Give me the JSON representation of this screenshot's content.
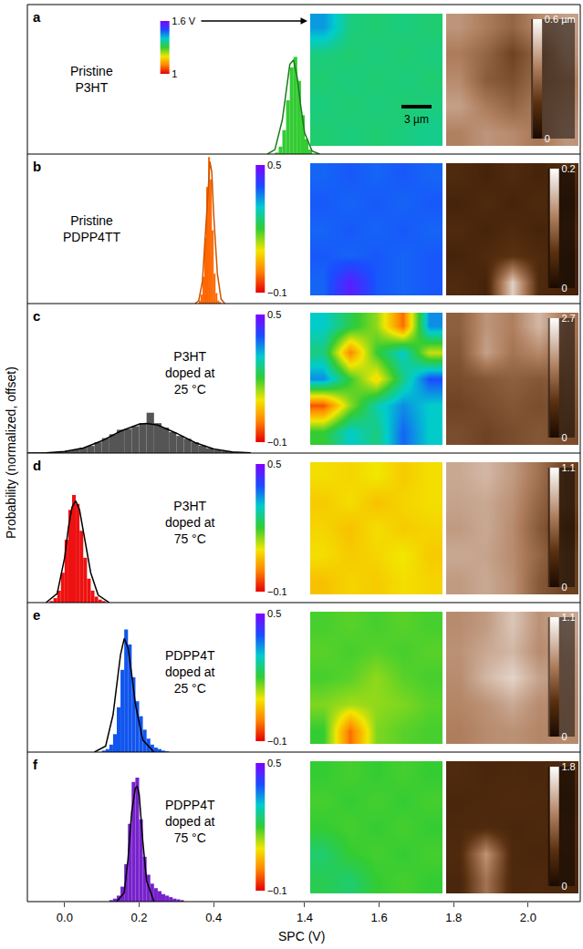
{
  "chart_data": {
    "type": "histogram",
    "y_label": "Probability (normalized, offset)",
    "x_label": "SPC (V)",
    "xlim": [
      -0.1,
      0.5
    ],
    "xticks": [
      {
        "value": 0,
        "label": "0.0"
      },
      {
        "value": 0.2,
        "label": "0.2"
      },
      {
        "value": 0.4,
        "label": "0.4"
      }
    ],
    "x2lim": [
      1.28,
      2.14
    ],
    "x2ticks": [
      {
        "value": 1.4,
        "label": "1.4"
      },
      {
        "value": 1.6,
        "label": "1.6"
      },
      {
        "value": 1.8,
        "label": "1.8"
      },
      {
        "value": 2,
        "label": "2.0"
      }
    ],
    "ylim": [
      0,
      1
    ],
    "tick_labels": "x",
    "scale_bar": "3 µm",
    "panels": [
      {
        "letter": "a",
        "label": [
          "Pristine",
          "P3HT"
        ],
        "axis": "x2",
        "color": "#33cc33",
        "bins": [
          1.32,
          1.33,
          1.34,
          1.35,
          1.36,
          1.37,
          1.38,
          1.39,
          1.4,
          1.41,
          1.42
        ],
        "counts": [
          0.01,
          0.05,
          0.16,
          0.36,
          0.58,
          0.65,
          0.49,
          0.26,
          0.1,
          0.03
        ],
        "fit": {
          "color": "#1a7a1a",
          "x": [
            1.3,
            1.32,
            1.34,
            1.35,
            1.36,
            1.37,
            1.38,
            1.39,
            1.4,
            1.42,
            1.44
          ],
          "values": [
            0,
            0.03,
            0.23,
            0.42,
            0.6,
            0.63,
            0.51,
            0.31,
            0.14,
            0.02,
            0
          ]
        },
        "spc_map": {
          "range": [
            1,
            1.6
          ],
          "ticks": [
            1,
            {
              "value": 1.6,
              "label": "1.6 V"
            }
          ],
          "cells": [
            [
              1.44,
              1.35,
              1.34,
              1.35,
              1.34
            ],
            [
              1.35,
              1.34,
              1.35,
              1.34,
              1.35
            ],
            [
              1.34,
              1.35,
              1.34,
              1.35,
              1.34
            ],
            [
              1.35,
              1.34,
              1.35,
              1.34,
              1.35
            ],
            [
              1.34,
              1.35,
              1.34,
              1.35,
              1.36
            ]
          ]
        },
        "afm_map": {
          "range": [
            0,
            0.6
          ],
          "ticks": [
            0,
            {
              "value": 0.6,
              "label": "0.6 µm"
            }
          ],
          "cells": [
            [
              0.4,
              0.35,
              0.3,
              0.38,
              0.42
            ],
            [
              0.35,
              0.3,
              0.22,
              0.3,
              0.4
            ],
            [
              0.38,
              0.28,
              0.25,
              0.32,
              0.36
            ],
            [
              0.42,
              0.35,
              0.3,
              0.35,
              0.38
            ],
            [
              0.36,
              0.4,
              0.38,
              0.34,
              0.4
            ]
          ]
        }
      },
      {
        "letter": "b",
        "label": [
          "Pristine",
          "PDPP4TT"
        ],
        "axis": "x",
        "color": "#ff6600",
        "bins": [
          0.36,
          0.365,
          0.37,
          0.375,
          0.38,
          0.385,
          0.39,
          0.395,
          0.4,
          0.405,
          0.41,
          0.415,
          0.42
        ],
        "counts": [
          0.02,
          0.06,
          0.18,
          0.44,
          0.78,
          0.98,
          0.83,
          0.49,
          0.2,
          0.07,
          0.02,
          0.01
        ],
        "fit": {
          "color": "#cc5500",
          "x": [
            0.35,
            0.36,
            0.37,
            0.38,
            0.385,
            0.39,
            0.395,
            0.4,
            0.41,
            0.42,
            0.43
          ],
          "values": [
            0,
            0.02,
            0.15,
            0.55,
            0.8,
            0.95,
            0.88,
            0.6,
            0.2,
            0.03,
            0
          ]
        },
        "spc_map": {
          "range": [
            -0.1,
            0.5
          ],
          "ticks": [
            {
              "value": -0.1,
              "label": "−0.1"
            },
            0.5
          ],
          "cells": [
            [
              0.38,
              0.39,
              0.38,
              0.39,
              0.38
            ],
            [
              0.39,
              0.38,
              0.39,
              0.38,
              0.39
            ],
            [
              0.38,
              0.39,
              0.38,
              0.39,
              0.38
            ],
            [
              0.39,
              0.38,
              0.39,
              0.38,
              0.39
            ],
            [
              0.38,
              0.46,
              0.39,
              0.38,
              0.39
            ]
          ]
        },
        "afm_map": {
          "range": [
            0,
            0.2
          ],
          "ticks": [
            0,
            0.2
          ],
          "cells": [
            [
              0.05,
              0.04,
              0.05,
              0.04,
              0.05
            ],
            [
              0.04,
              0.05,
              0.04,
              0.05,
              0.04
            ],
            [
              0.05,
              0.04,
              0.05,
              0.04,
              0.05
            ],
            [
              0.04,
              0.05,
              0.06,
              0.05,
              0.04
            ],
            [
              0.05,
              0.04,
              0.17,
              0.05,
              0.04
            ]
          ]
        }
      },
      {
        "letter": "c",
        "label": [
          "P3HT",
          "doped at",
          "25 °C"
        ],
        "axis": "x",
        "color": "#555555",
        "bins": [
          -0.1,
          -0.08,
          -0.06,
          -0.04,
          -0.02,
          0,
          0.02,
          0.04,
          0.06,
          0.08,
          0.1,
          0.12,
          0.14,
          0.16,
          0.18,
          0.2,
          0.22,
          0.24,
          0.26,
          0.28,
          0.3,
          0.32,
          0.34,
          0.36,
          0.38,
          0.4,
          0.42,
          0.44,
          0.46,
          0.48
        ],
        "counts": [
          0.001,
          0.002,
          0.004,
          0.006,
          0.009,
          0.015,
          0.024,
          0.036,
          0.048,
          0.072,
          0.1,
          0.126,
          0.156,
          0.162,
          0.18,
          0.2,
          0.27,
          0.2,
          0.17,
          0.14,
          0.115,
          0.096,
          0.072,
          0.05,
          0.033,
          0.021,
          0.012,
          0.007,
          0.004
        ],
        "fit": {
          "color": "#000000",
          "x": [
            -0.1,
            -0.05,
            0,
            0.05,
            0.1,
            0.15,
            0.2,
            0.22,
            0.25,
            0.3,
            0.35,
            0.4,
            0.45,
            0.5
          ],
          "values": [
            0.0004,
            0.002,
            0.01,
            0.034,
            0.082,
            0.146,
            0.193,
            0.198,
            0.187,
            0.133,
            0.07,
            0.027,
            0.008,
            0.002
          ]
        },
        "spc_map": {
          "range": [
            -0.1,
            0.5
          ],
          "ticks": [
            {
              "value": -0.1,
              "label": "−0.1"
            },
            0.5
          ],
          "cells": [
            [
              0.3,
              0.22,
              0.15,
              -0.02,
              0.35
            ],
            [
              0.25,
              0,
              0.2,
              0.3,
              0.12
            ],
            [
              0.35,
              0.2,
              0.08,
              0.25,
              0.4
            ],
            [
              -0.04,
              0.15,
              0.28,
              0.35,
              0.3
            ],
            [
              0.2,
              0.3,
              0.25,
              0.38,
              0.3
            ]
          ]
        },
        "afm_map": {
          "range": [
            0,
            2.7
          ],
          "ticks": [
            0,
            2.7
          ],
          "cells": [
            [
              1.3,
              1.8,
              1.6,
              2.1,
              1.5
            ],
            [
              1.2,
              1.9,
              1.5,
              1.7,
              1.4
            ],
            [
              1.1,
              1.2,
              1.3,
              1.2,
              1.3
            ],
            [
              1,
              1.1,
              1.2,
              1.1,
              1.2
            ],
            [
              1.1,
              1,
              1.1,
              1.2,
              1.1
            ]
          ]
        }
      },
      {
        "letter": "d",
        "label": [
          "P3HT",
          "doped at",
          "75 °C"
        ],
        "axis": "x",
        "color": "#ee1111",
        "bins": [
          -0.04,
          -0.03,
          -0.02,
          -0.01,
          0,
          0.01,
          0.02,
          0.03,
          0.04,
          0.05,
          0.06,
          0.07,
          0.08,
          0.09,
          0.1,
          0.11
        ],
        "counts": [
          0.01,
          0.03,
          0.08,
          0.2,
          0.42,
          0.62,
          0.72,
          0.66,
          0.48,
          0.3,
          0.16,
          0.08,
          0.04,
          0.02,
          0.01
        ],
        "fit": {
          "color": "#000000",
          "x": [
            -0.05,
            -0.02,
            0,
            0.01,
            0.02,
            0.03,
            0.04,
            0.05,
            0.07,
            0.09,
            0.12
          ],
          "values": [
            0,
            0.06,
            0.3,
            0.5,
            0.64,
            0.68,
            0.62,
            0.48,
            0.2,
            0.05,
            0
          ]
        },
        "spc_map": {
          "range": [
            -0.1,
            0.5
          ],
          "ticks": [
            {
              "value": -0.1,
              "label": "−0.1"
            },
            0.5
          ],
          "cells": [
            [
              0.09,
              0.08,
              0.1,
              0.07,
              0.09
            ],
            [
              0.07,
              0.09,
              0.06,
              0.08,
              0.09
            ],
            [
              0.08,
              0.06,
              0.09,
              0.07,
              0.08
            ],
            [
              0.09,
              0.07,
              0.08,
              0.1,
              0.07
            ],
            [
              0.06,
              0.08,
              0.07,
              0.09,
              0.08
            ]
          ]
        },
        "afm_map": {
          "range": [
            0,
            1.1
          ],
          "ticks": [
            0,
            1.1
          ],
          "cells": [
            [
              0.8,
              0.85,
              0.75,
              0.6,
              0.4
            ],
            [
              0.78,
              0.8,
              0.72,
              0.55,
              0.4
            ],
            [
              0.75,
              0.8,
              0.7,
              0.5,
              0.35
            ],
            [
              0.8,
              0.78,
              0.7,
              0.55,
              0.4
            ],
            [
              0.75,
              0.8,
              0.72,
              0.5,
              0.4
            ]
          ]
        }
      },
      {
        "letter": "e",
        "label": [
          "PDPP4T",
          "doped at",
          "25 °C"
        ],
        "axis": "x",
        "color": "#1155ee",
        "bins": [
          0.1,
          0.11,
          0.12,
          0.13,
          0.14,
          0.15,
          0.16,
          0.17,
          0.18,
          0.19,
          0.2,
          0.21,
          0.22,
          0.23,
          0.24,
          0.25,
          0.26,
          0.27,
          0.28
        ],
        "counts": [
          0.01,
          0.02,
          0.05,
          0.12,
          0.3,
          0.55,
          0.82,
          0.72,
          0.5,
          0.34,
          0.24,
          0.15,
          0.09,
          0.05,
          0.03,
          0.02,
          0.01,
          0.005
        ],
        "fit": {
          "color": "#000000",
          "x": [
            0.08,
            0.11,
            0.13,
            0.14,
            0.15,
            0.16,
            0.17,
            0.18,
            0.19,
            0.21,
            0.24
          ],
          "values": [
            0,
            0.04,
            0.25,
            0.45,
            0.65,
            0.76,
            0.7,
            0.52,
            0.32,
            0.08,
            0
          ]
        },
        "spc_map": {
          "range": [
            -0.1,
            0.5
          ],
          "ticks": [
            {
              "value": -0.1,
              "label": "−0.1"
            },
            0.5
          ],
          "cells": [
            [
              0.19,
              0.18,
              0.19,
              0.18,
              0.19
            ],
            [
              0.18,
              0.19,
              0.18,
              0.19,
              0.18
            ],
            [
              0.19,
              0.18,
              0.15,
              0.18,
              0.19
            ],
            [
              0.16,
              0.14,
              0.15,
              0.16,
              0.18
            ],
            [
              0.2,
              -0.02,
              0.16,
              0.18,
              0.19
            ]
          ]
        },
        "afm_map": {
          "range": [
            0,
            1.1
          ],
          "ticks": [
            0,
            1.1
          ],
          "cells": [
            [
              0.7,
              0.75,
              0.9,
              0.72,
              0.8
            ],
            [
              0.72,
              0.8,
              0.85,
              0.7,
              0.75
            ],
            [
              0.7,
              0.85,
              0.95,
              0.78,
              0.72
            ],
            [
              0.68,
              0.72,
              0.8,
              0.7,
              0.7
            ],
            [
              0.65,
              0.7,
              0.72,
              0.68,
              0.7
            ]
          ]
        }
      },
      {
        "letter": "f",
        "label": [
          "PDPP4T",
          "doped at",
          "75 °C"
        ],
        "axis": "x",
        "color": "#7722cc",
        "bins": [
          0.12,
          0.13,
          0.14,
          0.15,
          0.16,
          0.17,
          0.18,
          0.19,
          0.2,
          0.21,
          0.22,
          0.23,
          0.24,
          0.25,
          0.26,
          0.27,
          0.28,
          0.29,
          0.3,
          0.31,
          0.32
        ],
        "counts": [
          0.01,
          0.02,
          0.04,
          0.1,
          0.25,
          0.52,
          0.8,
          0.83,
          0.55,
          0.3,
          0.18,
          0.12,
          0.09,
          0.07,
          0.05,
          0.04,
          0.03,
          0.02,
          0.015,
          0.01
        ],
        "fit": {
          "color": "#000000",
          "x": [
            0.14,
            0.16,
            0.17,
            0.18,
            0.19,
            0.195,
            0.2,
            0.21,
            0.22,
            0.24
          ],
          "values": [
            0,
            0.06,
            0.28,
            0.6,
            0.76,
            0.77,
            0.72,
            0.4,
            0.14,
            0
          ]
        },
        "spc_map": {
          "range": [
            -0.1,
            0.5
          ],
          "ticks": [
            {
              "value": -0.1,
              "label": "−0.1"
            },
            0.5
          ],
          "cells": [
            [
              0.2,
              0.19,
              0.2,
              0.19,
              0.2
            ],
            [
              0.19,
              0.2,
              0.19,
              0.2,
              0.19
            ],
            [
              0.2,
              0.19,
              0.2,
              0.19,
              0.2
            ],
            [
              0.24,
              0.2,
              0.19,
              0.2,
              0.19
            ],
            [
              0.22,
              0.24,
              0.2,
              0.19,
              0.2
            ]
          ]
        },
        "afm_map": {
          "range": [
            0,
            1.8
          ],
          "ticks": [
            0,
            1.8
          ],
          "cells": [
            [
              0.45,
              0.4,
              0.42,
              0.4,
              0.45
            ],
            [
              0.4,
              0.42,
              0.45,
              0.43,
              0.4
            ],
            [
              0.42,
              0.45,
              0.4,
              0.42,
              0.44
            ],
            [
              0.45,
              1.2,
              0.42,
              0.4,
              0.42
            ],
            [
              0.4,
              1,
              0.42,
              0.44,
              0.4
            ]
          ]
        }
      }
    ]
  }
}
